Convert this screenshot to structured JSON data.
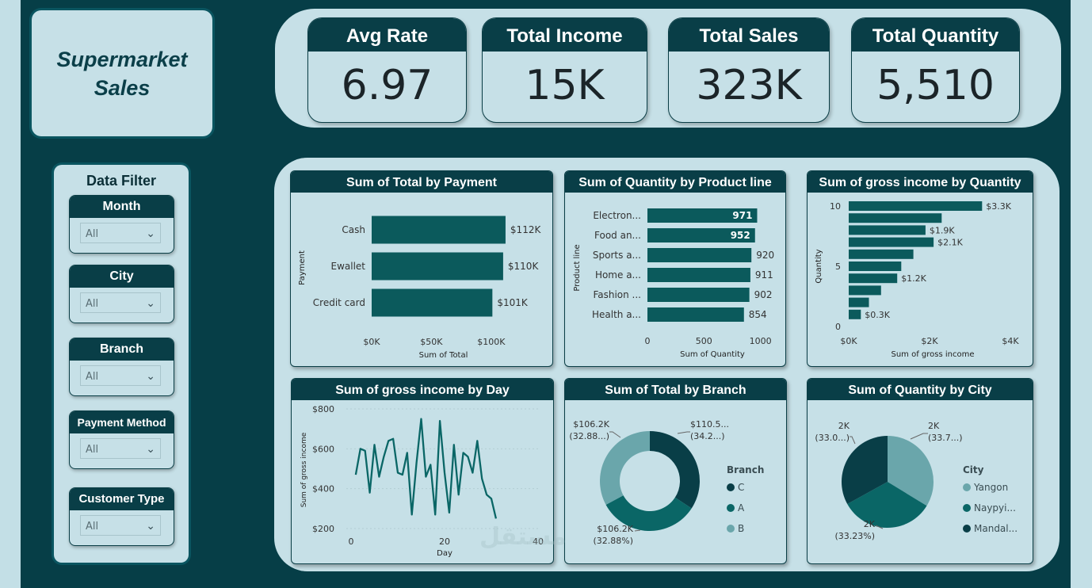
{
  "title": {
    "line1": "Supermarket",
    "line2": "Sales"
  },
  "kpis": [
    {
      "label": "Avg Rate",
      "value": "6.97"
    },
    {
      "label": "Total Income",
      "value": "15K"
    },
    {
      "label": "Total Sales",
      "value": "323K"
    },
    {
      "label": "Total Quantity",
      "value": "5,510"
    }
  ],
  "filters": {
    "title": "Data Filter",
    "items": [
      {
        "label": "Month",
        "value": "All"
      },
      {
        "label": "City",
        "value": "All"
      },
      {
        "label": "Branch",
        "value": "All"
      },
      {
        "label": "Payment Method",
        "value": "All"
      },
      {
        "label": "Customer Type",
        "value": "All"
      }
    ],
    "chevron_icon": "chevron-down-icon"
  },
  "colors": {
    "dark": "#093e47",
    "bar": "#0b5a5c",
    "teal": "#0a6666",
    "light": "#6aa6ab",
    "bg": "#c6e0e7"
  },
  "chart_data": [
    {
      "type": "bar",
      "title": "Sum of Total by Payment",
      "orientation": "horizontal",
      "categories": [
        "Cash",
        "Ewallet",
        "Credit card"
      ],
      "values": [
        112,
        110,
        101
      ],
      "labels": [
        "$112K",
        "$110K",
        "$101K"
      ],
      "xlabel": "Sum of Total",
      "ylabel": "Payment",
      "xticks": [
        "$0K",
        "$50K",
        "$100K"
      ],
      "xlim": [
        0,
        120
      ]
    },
    {
      "type": "bar",
      "title": "Sum of Quantity by Product line",
      "orientation": "horizontal",
      "categories": [
        "Electron...",
        "Food an...",
        "Sports a...",
        "Home a...",
        "Fashion ...",
        "Health a..."
      ],
      "values": [
        971,
        952,
        920,
        911,
        902,
        854
      ],
      "labels": [
        "971",
        "952",
        "920",
        "911",
        "902",
        "854"
      ],
      "xlabel": "Sum of Quantity",
      "ylabel": "Product line",
      "xticks": [
        "0",
        "500",
        "1000"
      ],
      "xlim": [
        0,
        1150
      ]
    },
    {
      "type": "bar",
      "title": "Sum of gross income by Quantity",
      "orientation": "horizontal",
      "categories": [
        "10",
        "9",
        "8",
        "7",
        "6",
        "5",
        "4",
        "3",
        "2",
        "1"
      ],
      "values": [
        3.3,
        2.3,
        1.9,
        2.1,
        1.6,
        1.3,
        1.2,
        0.8,
        0.5,
        0.3
      ],
      "labels": [
        "$3.3K",
        "",
        "$1.9K",
        "$2.1K",
        "",
        "",
        "$1.2K",
        "",
        "",
        "$0.3K"
      ],
      "xlabel": "Sum of gross income",
      "ylabel": "Quantity",
      "xticks": [
        "$0K",
        "$2K",
        "$4K"
      ],
      "yticks": [
        "10",
        "5",
        "0"
      ],
      "xlim": [
        0,
        4
      ]
    },
    {
      "type": "line",
      "title": "Sum of gross income by Day",
      "x": [
        1,
        2,
        3,
        4,
        5,
        6,
        7,
        8,
        9,
        10,
        11,
        12,
        13,
        14,
        15,
        16,
        17,
        18,
        19,
        20,
        21,
        22,
        23,
        24,
        25,
        26,
        27,
        28,
        29,
        30,
        31
      ],
      "values": [
        470,
        600,
        590,
        380,
        620,
        460,
        560,
        640,
        650,
        480,
        470,
        580,
        270,
        530,
        750,
        460,
        520,
        270,
        740,
        480,
        280,
        620,
        370,
        580,
        560,
        480,
        640,
        450,
        370,
        350,
        250
      ],
      "xlabel": "Day",
      "ylabel": "Sum of gross income",
      "yticks": [
        "$200",
        "$400",
        "$600",
        "$800"
      ],
      "xticks": [
        "0",
        "20",
        "40"
      ],
      "ylim": [
        200,
        800
      ],
      "xlim": [
        0,
        40
      ]
    },
    {
      "type": "pie",
      "title": "Sum of Total by Branch",
      "donut": true,
      "legend_title": "Branch",
      "legend": [
        "C",
        "A",
        "B"
      ],
      "values": [
        110.5,
        106.2,
        106.2
      ],
      "slice_labels": [
        [
          "$110.5...",
          "(34.2...)"
        ],
        [
          "$106.2K",
          "(32.88%)"
        ],
        [
          "$106.2K",
          "(32.88...)"
        ]
      ]
    },
    {
      "type": "pie",
      "title": "Sum of Quantity by City",
      "donut": false,
      "legend_title": "City",
      "legend": [
        "Yangon",
        "Naypyi...",
        "Mandal..."
      ],
      "values": [
        1859,
        1831,
        1820
      ],
      "slice_labels": [
        [
          "2K",
          "(33.7...)"
        ],
        [
          "2K",
          "(33.23%)"
        ],
        [
          "2K",
          "(33.0...)"
        ]
      ]
    }
  ]
}
